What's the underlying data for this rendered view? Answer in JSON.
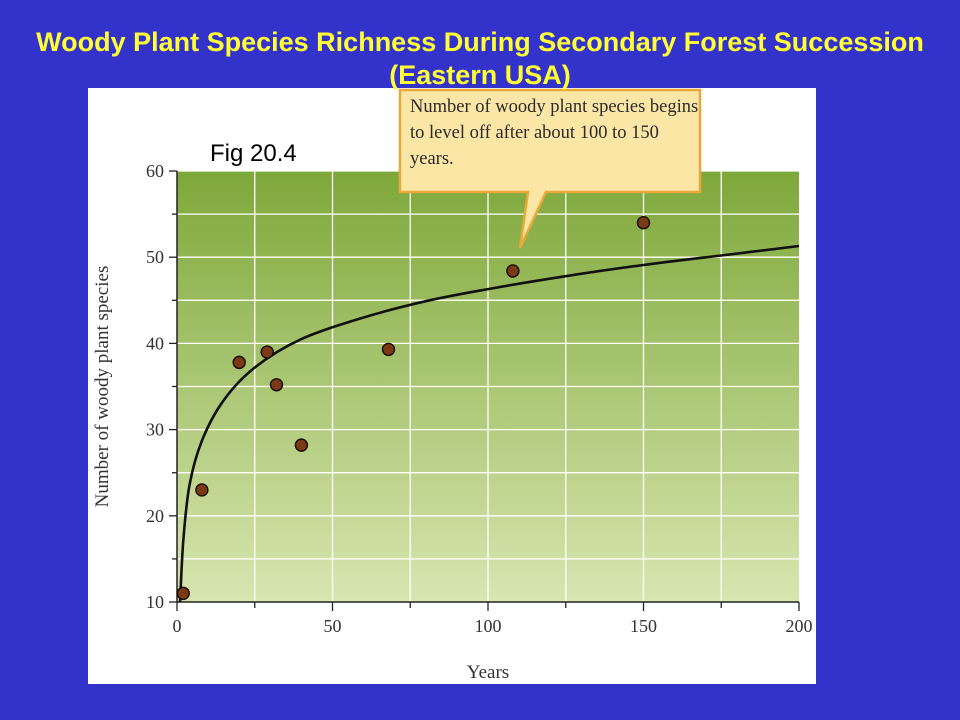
{
  "slide": {
    "title": "Woody Plant Species Richness During Secondary Forest Succession (Eastern USA)"
  },
  "figure": {
    "label": "Fig 20.4",
    "callout": "Number of woody plant species begins to level off after about 100 to 150 years."
  },
  "chart_data": {
    "type": "scatter",
    "xlabel": "Years",
    "ylabel": "Number of  woody plant species",
    "xlim": [
      0,
      200
    ],
    "ylim": [
      10,
      60
    ],
    "xticks": [
      0,
      50,
      100,
      150,
      200
    ],
    "yticks": [
      10,
      20,
      30,
      40,
      50,
      60
    ],
    "grid": true,
    "series": [
      {
        "x": [
          2,
          8,
          20,
          29,
          32,
          40,
          68,
          108,
          150
        ],
        "y": [
          11,
          23,
          37.8,
          39,
          35.2,
          28.2,
          39.3,
          48.4,
          54
        ],
        "color": "#7a3a16"
      }
    ],
    "trendline": {
      "x": [
        1,
        2,
        4,
        8,
        15,
        25,
        40,
        60,
        80,
        100,
        125,
        150,
        175,
        200
      ],
      "y": [
        10,
        17,
        23.5,
        28.7,
        33.4,
        37.2,
        40.5,
        43,
        44.9,
        46.3,
        47.8,
        49.1,
        50.2,
        51.3
      ]
    },
    "colors": {
      "plot_top": "#7ea83a",
      "plot_bottom": "#d8e6b0",
      "grid": "#ffffff",
      "callout_fill": "#fbe6a6",
      "callout_border": "#e8a83a"
    }
  }
}
